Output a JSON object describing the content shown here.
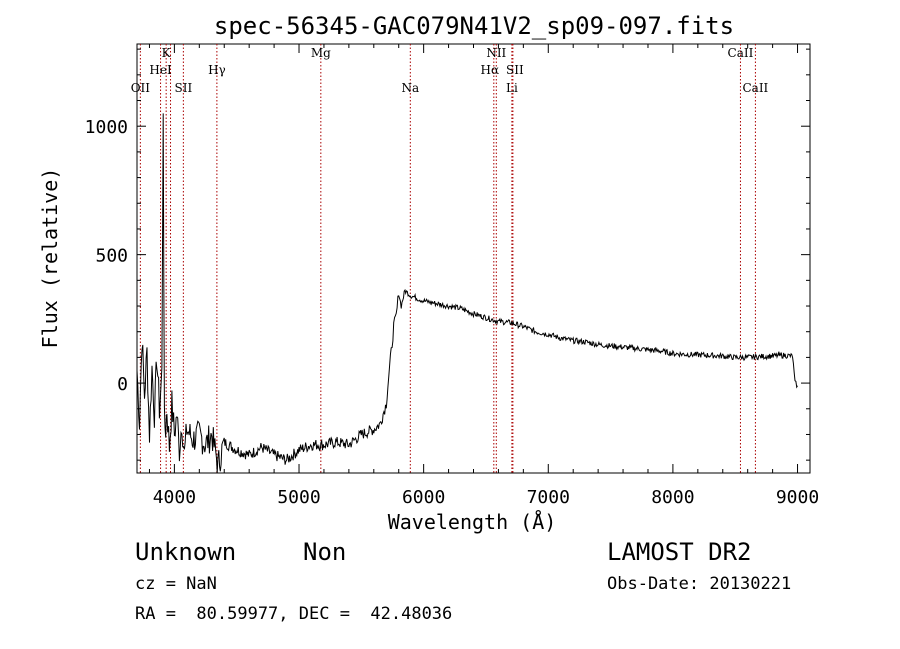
{
  "chart_data": {
    "type": "line",
    "title": "spec-56345-GAC079N41V2_sp09-097.fits",
    "xlabel": "Wavelength (Å)",
    "ylabel": "Flux (relative)",
    "xlim": [
      3700,
      9100
    ],
    "ylim": [
      -350,
      1320
    ],
    "xticks": [
      4000,
      5000,
      6000,
      7000,
      8000,
      9000
    ],
    "yticks": [
      0,
      500,
      1000
    ],
    "spectrum_color": "#000000",
    "line_marker_color": "#aa0000",
    "grid": false,
    "lines": [
      {
        "label": "OII",
        "x": 3727
      },
      {
        "label": "K",
        "x": 3934
      },
      {
        "label": "HeI",
        "x": 3889
      },
      {
        "label": "H",
        "x": 3969
      },
      {
        "label": "SII",
        "x": 4072
      },
      {
        "label": "Hγ",
        "x": 4341
      },
      {
        "label": "Mg",
        "x": 5175
      },
      {
        "label": "Na",
        "x": 5893
      },
      {
        "label": "NII",
        "x": 6583
      },
      {
        "label": "Hα",
        "x": 6563
      },
      {
        "label": "SII",
        "x": 6716
      },
      {
        "label": "Li",
        "x": 6708
      },
      {
        "label": "CaII",
        "x": 8542
      },
      {
        "label": "CaII",
        "x": 8662
      }
    ],
    "series": [
      {
        "x": [
          3700,
          3720,
          3740,
          3760,
          3780,
          3800,
          3820,
          3840,
          3860,
          3880,
          3900,
          3910,
          3920,
          3930,
          3940,
          3960,
          3980,
          4000,
          4020,
          4040,
          4060,
          4080,
          4100,
          4150,
          4200,
          4250,
          4300,
          4350,
          4400,
          4500,
          4600,
          4700,
          4800,
          4900,
          5000,
          5100,
          5200,
          5300,
          5400,
          5500,
          5600,
          5650,
          5700,
          5720,
          5740,
          5760,
          5780,
          5800,
          5820,
          5850,
          5900,
          5950,
          6000,
          6100,
          6200,
          6300,
          6400,
          6500,
          6600,
          6700,
          6800,
          6900,
          7000,
          7100,
          7200,
          7300,
          7400,
          7500,
          7600,
          7700,
          7800,
          7900,
          8000,
          8100,
          8200,
          8300,
          8400,
          8500,
          8600,
          8700,
          8800,
          8900,
          8960,
          8980,
          9000
        ],
        "y": [
          50,
          -150,
          180,
          -50,
          120,
          -200,
          60,
          -120,
          100,
          -100,
          40,
          1050,
          -150,
          -180,
          -100,
          -250,
          -80,
          -200,
          -120,
          -260,
          -150,
          -280,
          -180,
          -220,
          -200,
          -240,
          -200,
          -320,
          -230,
          -260,
          -280,
          -250,
          -280,
          -300,
          -260,
          -240,
          -240,
          -230,
          -240,
          -200,
          -180,
          -160,
          -80,
          30,
          120,
          220,
          260,
          350,
          300,
          360,
          340,
          330,
          320,
          310,
          300,
          290,
          270,
          255,
          240,
          235,
          220,
          200,
          190,
          175,
          165,
          160,
          150,
          145,
          140,
          135,
          130,
          125,
          115,
          112,
          110,
          108,
          105,
          100,
          100,
          103,
          106,
          108,
          105,
          0,
          -10
        ]
      }
    ]
  },
  "footer": {
    "object_class": "Unknown",
    "subclass": "Non",
    "survey": "LAMOST DR2",
    "cz": "cz = NaN",
    "obs_date": "Obs-Date: 20130221",
    "coords": "RA =  80.59977, DEC =  42.48036"
  }
}
